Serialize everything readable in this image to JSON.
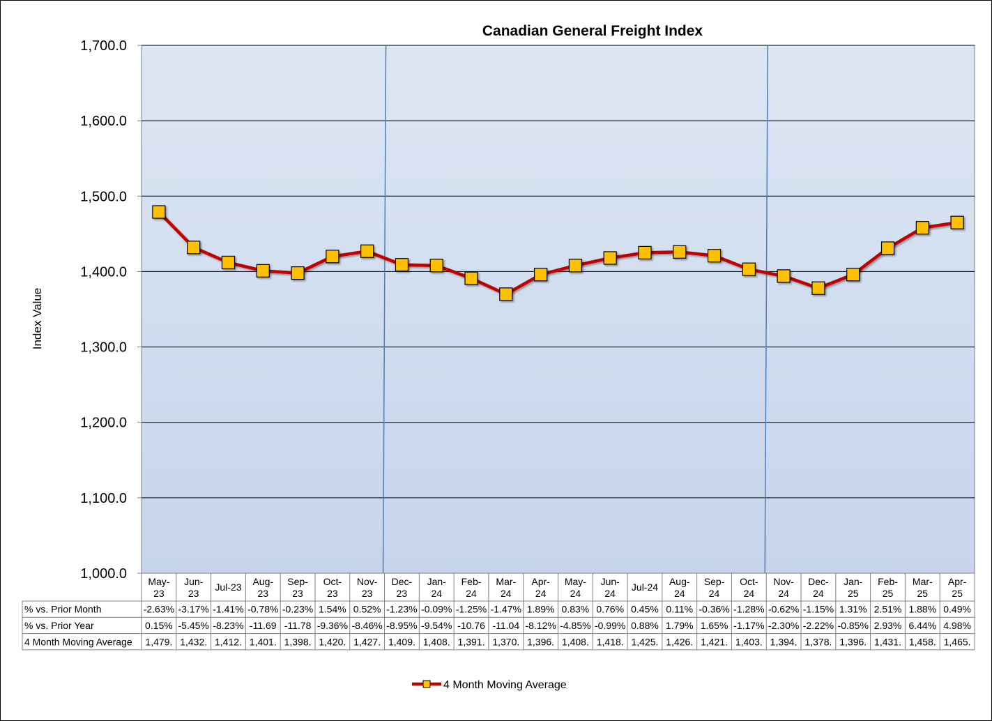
{
  "chart_data": {
    "type": "line",
    "title": "Canadian General Freight Index",
    "ylabel": "Index Value",
    "xlabel": "",
    "ylim": [
      1000,
      1700
    ],
    "yticks": [
      1000,
      1100,
      1200,
      1300,
      1400,
      1500,
      1600,
      1700
    ],
    "ytick_labels": [
      "1,000.0",
      "1,100.0",
      "1,200.0",
      "1,300.0",
      "1,400.0",
      "1,500.0",
      "1,600.0",
      "1,700.0"
    ],
    "grid": true,
    "legend_position": "bottom-center",
    "colors": {
      "plot_top": "#dde6f3",
      "plot_bottom": "#c6d5ec",
      "line": "#c00000",
      "marker": "#ffc000",
      "marker_edge": "#000000",
      "divider": "#4a7ebb"
    },
    "categories": [
      [
        "May-",
        "23"
      ],
      [
        "Jun-",
        "23"
      ],
      [
        "Jul-23"
      ],
      [
        "Aug-",
        "23"
      ],
      [
        "Sep-",
        "23"
      ],
      [
        "Oct-",
        "23"
      ],
      [
        "Nov-",
        "23"
      ],
      [
        "Dec-",
        "23"
      ],
      [
        "Jan-",
        "24"
      ],
      [
        "Feb-",
        "24"
      ],
      [
        "Mar-",
        "24"
      ],
      [
        "Apr-",
        "24"
      ],
      [
        "May-",
        "24"
      ],
      [
        "Jun-",
        "24"
      ],
      [
        "Jul-24"
      ],
      [
        "Aug-",
        "24"
      ],
      [
        "Sep-",
        "24"
      ],
      [
        "Oct-",
        "24"
      ],
      [
        "Nov-",
        "24"
      ],
      [
        "Dec-",
        "24"
      ],
      [
        "Jan-",
        "25"
      ],
      [
        "Feb-",
        "25"
      ],
      [
        "Mar-",
        "25"
      ],
      [
        "Apr-",
        "25"
      ]
    ],
    "year_dividers_after_index": [
      6,
      17
    ],
    "series": [
      {
        "name": "4 Month Moving Average",
        "values": [
          1479,
          1432,
          1412,
          1401,
          1398,
          1420,
          1427,
          1409,
          1408,
          1391,
          1370,
          1396,
          1408,
          1418,
          1425,
          1426,
          1421,
          1403,
          1394,
          1378,
          1396,
          1431,
          1458,
          1465
        ]
      }
    ],
    "table": [
      {
        "label": "% vs. Prior Month",
        "cells": [
          "-2.63%",
          "-3.17%",
          "-1.41%",
          "-0.78%",
          "-0.23%",
          "1.54%",
          "0.52%",
          "-1.23%",
          "-0.09%",
          "-1.25%",
          "-1.47%",
          "1.89%",
          "0.83%",
          "0.76%",
          "0.45%",
          "0.11%",
          "-0.36%",
          "-1.28%",
          "-0.62%",
          "-1.15%",
          "1.31%",
          "2.51%",
          "1.88%",
          "0.49%"
        ]
      },
      {
        "label": "% vs. Prior Year",
        "cells": [
          "0.15%",
          "-5.45%",
          "-8.23%",
          "-11.69",
          "-11.78",
          "-9.36%",
          "-8.46%",
          "-8.95%",
          "-9.54%",
          "-10.76",
          "-11.04",
          "-8.12%",
          "-4.85%",
          "-0.99%",
          "0.88%",
          "1.79%",
          "1.65%",
          "-1.17%",
          "-2.30%",
          "-2.22%",
          "-0.85%",
          "2.93%",
          "6.44%",
          "4.98%"
        ]
      },
      {
        "label": "4 Month Moving Average",
        "cells": [
          "1,479.",
          "1,432.",
          "1,412.",
          "1,401.",
          "1,398.",
          "1,420.",
          "1,427.",
          "1,409.",
          "1,408.",
          "1,391.",
          "1,370.",
          "1,396.",
          "1,408.",
          "1,418.",
          "1,425.",
          "1,426.",
          "1,421.",
          "1,403.",
          "1,394.",
          "1,378.",
          "1,396.",
          "1,431.",
          "1,458.",
          "1,465."
        ]
      }
    ]
  }
}
